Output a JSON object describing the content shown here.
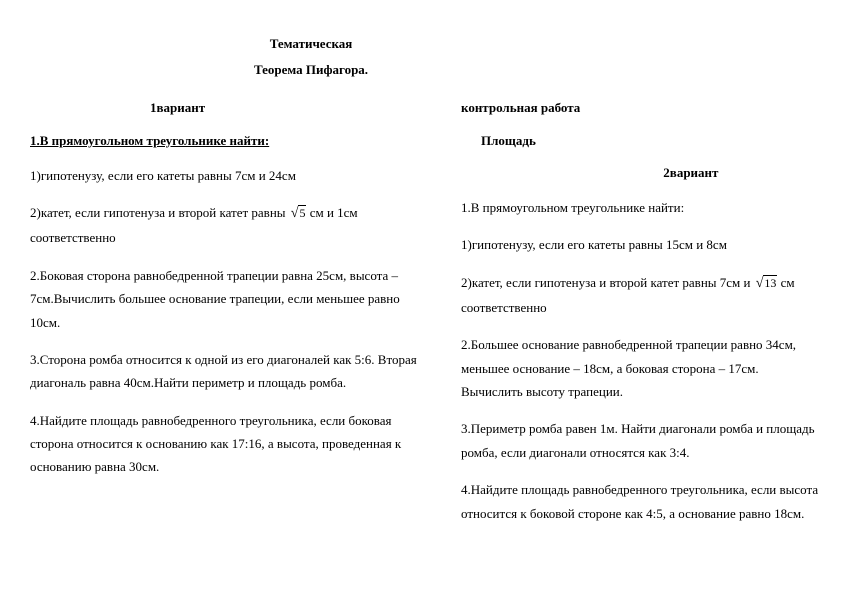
{
  "title1": "Тематическая",
  "title2": "Теорема Пифагора.",
  "left": {
    "variant": "1вариант",
    "heading": "1.В прямоугольном треугольнике найти:",
    "p1": "1)гипотенузу, если его катеты равны 7см и 24см",
    "p2a": "2)катет, если гипотенуза и второй катет равны ",
    "p2rad": "5",
    "p2b": "  см и  1см соответственно",
    "p3": "2.Боковая сторона равнобедренной трапеции равна 25см, высота – 7см.Вычислить большее основание трапеции, если меньшее равно 10см.",
    "p4": "3.Сторона ромба относится к одной из его диагоналей как 5:6. Вторая диагональ равна 40см.Найти периметр и площадь ромба.",
    "p5": "4.Найдите площадь равнобедренного треугольника, если боковая сторона относится к основанию как 17:16, а высота, проведенная к основанию равна 30см."
  },
  "right": {
    "top": "контрольная работа",
    "area": "Площадь",
    "variant": "2вариант",
    "heading": "1.В прямоугольном треугольнике найти:",
    "p1": "1)гипотенузу, если его катеты равны 15см и 8см",
    "p2a": "2)катет, если гипотенуза и второй катет равны 7см  и ",
    "p2rad": "13",
    "p2b": " см соответственно",
    "p3": "2.Большее основание равнобедренной трапеции равно 34см, меньшее основание – 18см, а боковая сторона – 17см. Вычислить высоту трапеции.",
    "p4": "3.Периметр ромба равен 1м. Найти диагонали ромба и площадь ромба, если диагонали относятся как 3:4.",
    "p5": "4.Найдите площадь равнобедренного треугольника, если высота относится к боковой стороне как 4:5, а основание равно 18см."
  }
}
